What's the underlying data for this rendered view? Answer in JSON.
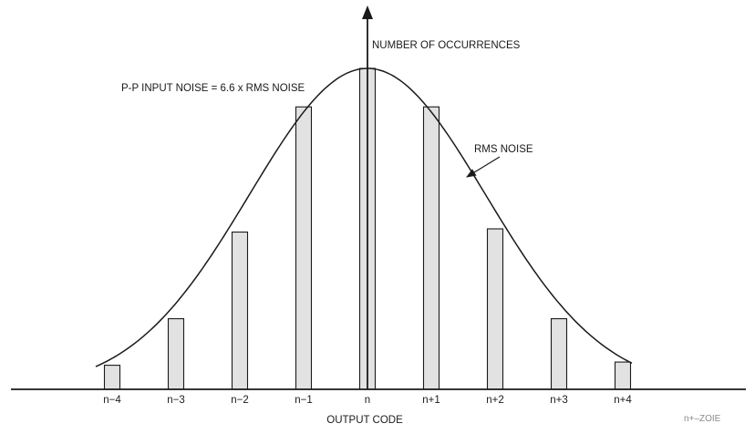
{
  "chart_data": {
    "type": "bar",
    "categories": [
      "n−4",
      "n−3",
      "n−2",
      "n−1",
      "n",
      "n+1",
      "n+2",
      "n+3",
      "n+4"
    ],
    "values": [
      7.5,
      22,
      49,
      88,
      100,
      88,
      50,
      22,
      8.5
    ],
    "ylabel": "NUMBER OF OCCURRENCES",
    "xlabel": "OUTPUT CODE",
    "ylim": [
      0,
      110
    ],
    "grid": false,
    "overlay_curve": "gaussian",
    "annotations": {
      "pp_noise": "P-P INPUT NOISE = 6.6 x RMS NOISE",
      "rms_noise": "RMS NOISE"
    }
  },
  "watermark": "n+–ZOIE"
}
